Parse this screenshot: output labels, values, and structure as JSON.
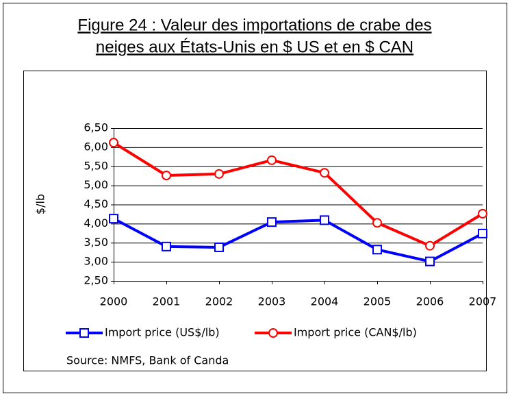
{
  "chart_data": {
    "type": "line",
    "title": [
      "Figure 24 : Valeur des importations de crabe des",
      "neiges aux États-Unis en $ US et en $ CAN"
    ],
    "y_label": "$/lb",
    "source": "Source: NMFS, Bank of Canda",
    "categories": [
      "2000",
      "2001",
      "2002",
      "2003",
      "2004",
      "2005",
      "2006",
      "2007"
    ],
    "series": [
      {
        "name": "Import price (US$/lb)",
        "color": "#0000ff",
        "marker": "square",
        "values": [
          4.13,
          3.4,
          3.38,
          4.04,
          4.09,
          3.32,
          3.01,
          3.74
        ]
      },
      {
        "name": "Import price (CAN$/lb)",
        "color": "#ff0000",
        "marker": "circle",
        "values": [
          6.12,
          5.26,
          5.3,
          5.66,
          5.33,
          4.02,
          3.42,
          4.26
        ]
      }
    ],
    "ylim": [
      2.5,
      6.5
    ],
    "yticks": [
      {
        "value": 2.5,
        "label": "2,50"
      },
      {
        "value": 3.0,
        "label": "3,00"
      },
      {
        "value": 3.5,
        "label": "3,50"
      },
      {
        "value": 4.0,
        "label": "4,00"
      },
      {
        "value": 4.5,
        "label": "4,50"
      },
      {
        "value": 5.0,
        "label": "5,00"
      },
      {
        "value": 5.5,
        "label": "5,50"
      },
      {
        "value": 6.0,
        "label": "6,00"
      },
      {
        "value": 6.5,
        "label": "6,50"
      }
    ],
    "grid": true,
    "legend": "bottom"
  }
}
